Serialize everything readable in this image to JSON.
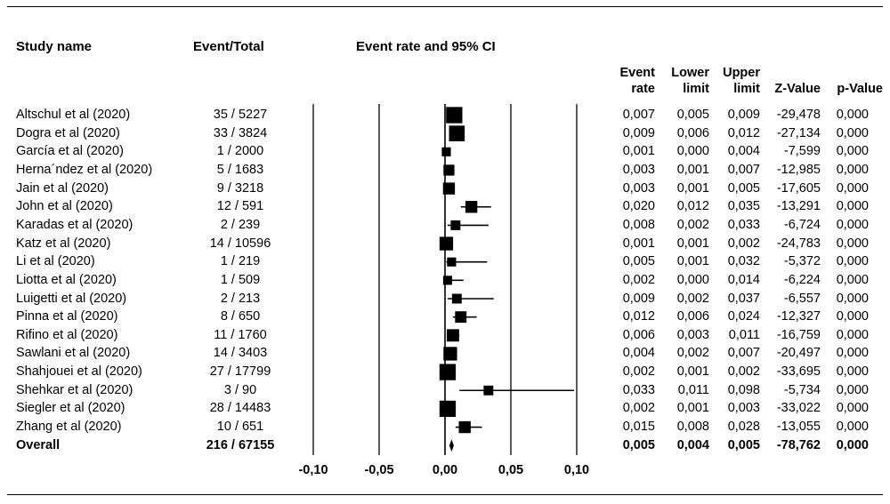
{
  "headers": {
    "study_name": "Study name",
    "event_total": "Event/Total",
    "ci_title": "Event rate and 95% CI",
    "event_rate": [
      "Event",
      "rate"
    ],
    "lower_limit": [
      "Lower",
      "limit"
    ],
    "upper_limit": [
      "Upper",
      "limit"
    ],
    "z_value": "Z-Value",
    "p_value": "p-Value"
  },
  "rows": [
    {
      "name": "Altschul et al (2020)",
      "event_total": "35 / 5227",
      "rate": "0,007",
      "lower": "0,005",
      "upper": "0,009",
      "z": "-29,478",
      "p": "0,000"
    },
    {
      "name": "Dogra et al (2020)",
      "event_total": "33 / 3824",
      "rate": "0,009",
      "lower": "0,006",
      "upper": "0,012",
      "z": "-27,134",
      "p": "0,000"
    },
    {
      "name": "García et al (2020)",
      "event_total": "1 / 2000",
      "rate": "0,001",
      "lower": "0,000",
      "upper": "0,004",
      "z": "-7,599",
      "p": "0,000"
    },
    {
      "name": "Herna´ndez et al (2020)",
      "event_total": "5 / 1683",
      "rate": "0,003",
      "lower": "0,001",
      "upper": "0,007",
      "z": "-12,985",
      "p": "0,000"
    },
    {
      "name": "Jain et al (2020)",
      "event_total": "9 / 3218",
      "rate": "0,003",
      "lower": "0,001",
      "upper": "0,005",
      "z": "-17,605",
      "p": "0,000"
    },
    {
      "name": "John et al (2020)",
      "event_total": "12 / 591",
      "rate": "0,020",
      "lower": "0,012",
      "upper": "0,035",
      "z": "-13,291",
      "p": "0,000"
    },
    {
      "name": "Karadas et al (2020)",
      "event_total": "2 / 239",
      "rate": "0,008",
      "lower": "0,002",
      "upper": "0,033",
      "z": "-6,724",
      "p": "0,000"
    },
    {
      "name": "Katz et al (2020)",
      "event_total": "14 / 10596",
      "rate": "0,001",
      "lower": "0,001",
      "upper": "0,002",
      "z": "-24,783",
      "p": "0,000"
    },
    {
      "name": "Li et al (2020)",
      "event_total": "1 / 219",
      "rate": "0,005",
      "lower": "0,001",
      "upper": "0,032",
      "z": "-5,372",
      "p": "0,000"
    },
    {
      "name": "Liotta et al (2020)",
      "event_total": "1 / 509",
      "rate": "0,002",
      "lower": "0,000",
      "upper": "0,014",
      "z": "-6,224",
      "p": "0,000"
    },
    {
      "name": "Luigetti et al (2020)",
      "event_total": "2 / 213",
      "rate": "0,009",
      "lower": "0,002",
      "upper": "0,037",
      "z": "-6,557",
      "p": "0,000"
    },
    {
      "name": "Pinna et al (2020)",
      "event_total": "8 / 650",
      "rate": "0,012",
      "lower": "0,006",
      "upper": "0,024",
      "z": "-12,327",
      "p": "0,000"
    },
    {
      "name": "Rifino et al (2020)",
      "event_total": "11 / 1760",
      "rate": "0,006",
      "lower": "0,003",
      "upper": "0,011",
      "z": "-16,759",
      "p": "0,000"
    },
    {
      "name": "Sawlani et al (2020)",
      "event_total": "14 / 3403",
      "rate": "0,004",
      "lower": "0,002",
      "upper": "0,007",
      "z": "-20,497",
      "p": "0,000"
    },
    {
      "name": "Shahjouei et al (2020)",
      "event_total": "27 / 17799",
      "rate": "0,002",
      "lower": "0,001",
      "upper": "0,002",
      "z": "-33,695",
      "p": "0,000"
    },
    {
      "name": "Shehkar et al (2020)",
      "event_total": "3 / 90",
      "rate": "0,033",
      "lower": "0,011",
      "upper": "0,098",
      "z": "-5,734",
      "p": "0,000"
    },
    {
      "name": "Siegler et al (2020)",
      "event_total": "28 / 14483",
      "rate": "0,002",
      "lower": "0,001",
      "upper": "0,003",
      "z": "-33,022",
      "p": "0,000"
    },
    {
      "name": "Zhang et al (2020)",
      "event_total": "10 / 651",
      "rate": "0,015",
      "lower": "0,008",
      "upper": "0,028",
      "z": "-13,055",
      "p": "0,000"
    }
  ],
  "overall": {
    "name": "Overall",
    "event_total": "216 / 67155",
    "rate": "0,005",
    "lower": "0,004",
    "upper": "0,005",
    "z": "-78,762",
    "p": "0,000"
  },
  "chart_data": {
    "type": "forest",
    "title": "Event rate and 95% CI",
    "xlim": [
      -0.1,
      0.1
    ],
    "ticks": [
      -0.1,
      -0.05,
      0.0,
      0.05,
      0.1
    ],
    "tick_labels": [
      "-0,10",
      "-0,05",
      "0,00",
      "0,05",
      "0,10"
    ],
    "gridlines": [
      -0.1,
      -0.05,
      0.05,
      0.1
    ],
    "points": [
      {
        "label": "Altschul et al (2020)",
        "est": 0.007,
        "lo": 0.005,
        "hi": 0.009,
        "weight": 10
      },
      {
        "label": "Dogra et al (2020)",
        "est": 0.009,
        "lo": 0.006,
        "hi": 0.012,
        "weight": 9
      },
      {
        "label": "García et al (2020)",
        "est": 0.001,
        "lo": 0.0,
        "hi": 0.004,
        "weight": 1.5
      },
      {
        "label": "Herna´ndez et al (2020)",
        "est": 0.003,
        "lo": 0.001,
        "hi": 0.007,
        "weight": 3
      },
      {
        "label": "Jain et al (2020)",
        "est": 0.003,
        "lo": 0.001,
        "hi": 0.005,
        "weight": 4
      },
      {
        "label": "John et al (2020)",
        "est": 0.02,
        "lo": 0.012,
        "hi": 0.035,
        "weight": 4
      },
      {
        "label": "Karadas et al (2020)",
        "est": 0.008,
        "lo": 0.002,
        "hi": 0.033,
        "weight": 2
      },
      {
        "label": "Katz et al (2020)",
        "est": 0.001,
        "lo": 0.001,
        "hi": 0.002,
        "weight": 6
      },
      {
        "label": "Li et al (2020)",
        "est": 0.005,
        "lo": 0.001,
        "hi": 0.032,
        "weight": 1.5
      },
      {
        "label": "Liotta et al (2020)",
        "est": 0.002,
        "lo": 0.0,
        "hi": 0.014,
        "weight": 1.5
      },
      {
        "label": "Luigetti et al (2020)",
        "est": 0.009,
        "lo": 0.002,
        "hi": 0.037,
        "weight": 2
      },
      {
        "label": "Pinna et al (2020)",
        "est": 0.012,
        "lo": 0.006,
        "hi": 0.024,
        "weight": 3.5
      },
      {
        "label": "Rifino et al (2020)",
        "est": 0.006,
        "lo": 0.003,
        "hi": 0.011,
        "weight": 4.5
      },
      {
        "label": "Sawlani et al (2020)",
        "est": 0.004,
        "lo": 0.002,
        "hi": 0.007,
        "weight": 6
      },
      {
        "label": "Shahjouei et al (2020)",
        "est": 0.002,
        "lo": 0.001,
        "hi": 0.002,
        "weight": 10
      },
      {
        "label": "Shehkar et al (2020)",
        "est": 0.033,
        "lo": 0.011,
        "hi": 0.098,
        "weight": 2
      },
      {
        "label": "Siegler et al (2020)",
        "est": 0.002,
        "lo": 0.001,
        "hi": 0.003,
        "weight": 10
      },
      {
        "label": "Zhang et al (2020)",
        "est": 0.015,
        "lo": 0.008,
        "hi": 0.028,
        "weight": 4
      }
    ],
    "overall": {
      "label": "Overall",
      "est": 0.005,
      "lo": 0.004,
      "hi": 0.005
    }
  }
}
